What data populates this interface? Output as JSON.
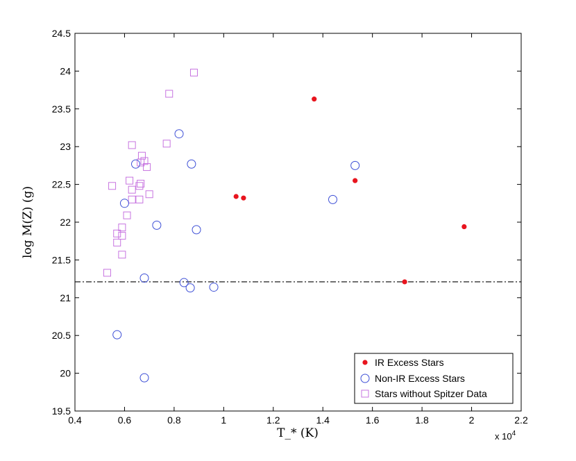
{
  "chart_data": {
    "type": "scatter",
    "xlabel": "T_* (K)",
    "ylabel": "log M(Z) (g)",
    "x_multiplier_label": "x 10",
    "x_multiplier_exp": "4",
    "xlim": [
      0.4,
      2.2
    ],
    "ylim": [
      19.5,
      24.5
    ],
    "x_ticks": [
      "0.4",
      "0.6",
      "0.8",
      "1",
      "1.2",
      "1.4",
      "1.6",
      "1.8",
      "2",
      "2.2"
    ],
    "y_ticks": [
      "19.5",
      "20",
      "20.5",
      "21",
      "21.5",
      "22",
      "22.5",
      "23",
      "23.5",
      "24",
      "24.5"
    ],
    "grid": false,
    "legend_position": "bottom-right",
    "reference_line": {
      "y": 21.21,
      "style": "dash-dot"
    },
    "series": [
      {
        "name": "IR Excess Stars",
        "marker": "filled-dot",
        "color": "#e8141e",
        "points": [
          [
            1.365,
            23.63
          ],
          [
            1.05,
            22.34
          ],
          [
            1.08,
            22.32
          ],
          [
            1.53,
            22.55
          ],
          [
            1.97,
            21.94
          ],
          [
            1.73,
            21.21
          ]
        ]
      },
      {
        "name": "Non-IR Excess Stars",
        "marker": "open-circle",
        "color": "#3d4fd6",
        "points": [
          [
            0.82,
            23.17
          ],
          [
            0.645,
            22.77
          ],
          [
            0.87,
            22.77
          ],
          [
            1.53,
            22.75
          ],
          [
            0.6,
            22.25
          ],
          [
            1.44,
            22.3
          ],
          [
            0.73,
            21.96
          ],
          [
            0.89,
            21.9
          ],
          [
            0.68,
            21.26
          ],
          [
            0.84,
            21.2
          ],
          [
            0.865,
            21.13
          ],
          [
            0.96,
            21.14
          ],
          [
            0.57,
            20.51
          ],
          [
            0.68,
            19.94
          ]
        ]
      },
      {
        "name": "Stars without Spitzer Data",
        "marker": "open-square",
        "color": "#c774e0",
        "points": [
          [
            0.88,
            23.98
          ],
          [
            0.78,
            23.7
          ],
          [
            0.77,
            23.04
          ],
          [
            0.63,
            23.02
          ],
          [
            0.67,
            22.88
          ],
          [
            0.68,
            22.81
          ],
          [
            0.665,
            22.79
          ],
          [
            0.69,
            22.73
          ],
          [
            0.62,
            22.55
          ],
          [
            0.665,
            22.51
          ],
          [
            0.66,
            22.48
          ],
          [
            0.55,
            22.48
          ],
          [
            0.63,
            22.43
          ],
          [
            0.7,
            22.37
          ],
          [
            0.63,
            22.3
          ],
          [
            0.66,
            22.3
          ],
          [
            0.61,
            22.09
          ],
          [
            0.59,
            21.93
          ],
          [
            0.57,
            21.85
          ],
          [
            0.59,
            21.82
          ],
          [
            0.57,
            21.73
          ],
          [
            0.59,
            21.57
          ],
          [
            0.53,
            21.33
          ]
        ]
      }
    ]
  }
}
